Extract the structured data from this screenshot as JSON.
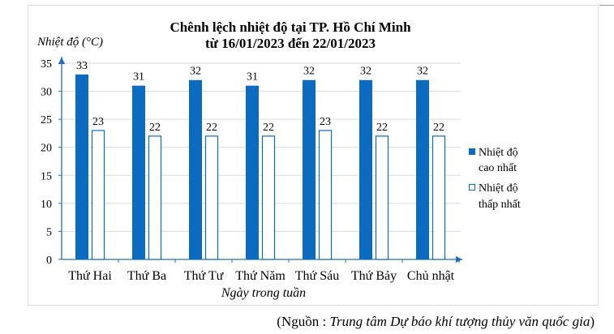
{
  "chart_data": {
    "type": "bar",
    "title_line1": "Chênh lệch nhiệt độ tại TP. Hồ Chí Minh",
    "title_line2": "từ 16/01/2023 đến 22/01/2023",
    "ylabel": "Nhiệt độ (°C)",
    "xlabel": "Ngày trong tuần",
    "categories": [
      "Thứ Hai",
      "Thứ Ba",
      "Thứ Tư",
      "Thứ Năm",
      "Thứ Sáu",
      "Thứ Bảy",
      "Chủ nhật"
    ],
    "series": [
      {
        "name_line1": "Nhiệt độ",
        "name_line2": "cao nhất",
        "values": [
          33,
          31,
          32,
          31,
          32,
          32,
          32
        ],
        "style": "filled"
      },
      {
        "name_line1": "Nhiệt độ",
        "name_line2": "thấp nhất",
        "values": [
          23,
          22,
          22,
          22,
          23,
          22,
          22
        ],
        "style": "outline"
      }
    ],
    "yticks": [
      0,
      5,
      10,
      15,
      20,
      25,
      30,
      35
    ],
    "ylim": [
      0,
      35
    ],
    "grid": true,
    "legend_position": "right",
    "data_labels": true
  },
  "colors": {
    "bar": "#0a6bc1",
    "axis": "#1f6fc0",
    "grid": "#d9d9d9"
  },
  "source": {
    "prefix": "(Nguồn : ",
    "name": "Trung tâm Dự báo khí tượng thủy văn quốc gia",
    "suffix": ")"
  }
}
